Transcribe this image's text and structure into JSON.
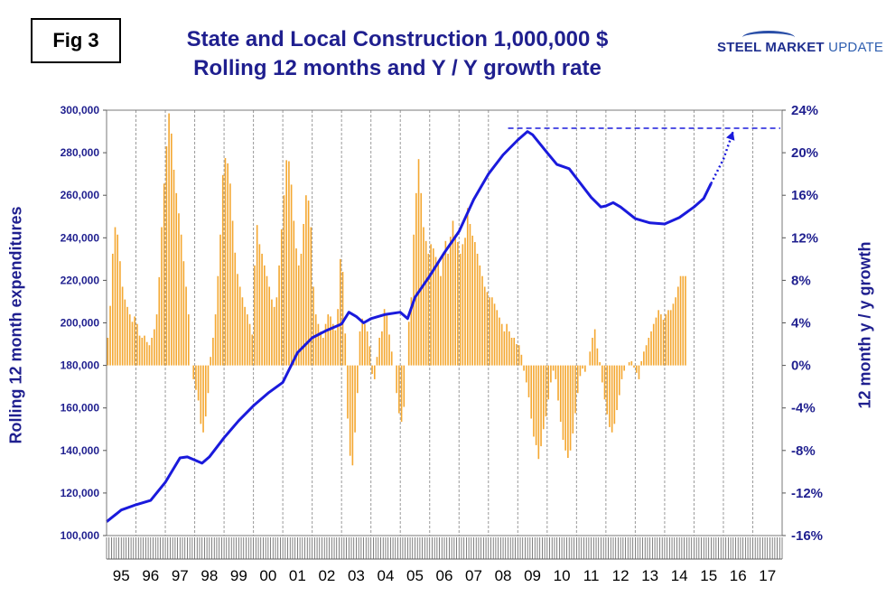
{
  "figure_label": "Fig 3",
  "title_line1": "State and Local Construction 1,000,000 $",
  "title_line2": "Rolling 12 months and Y / Y growth rate",
  "logo": {
    "bold": "STEEL MARKET",
    "light": "UPDATE"
  },
  "colors": {
    "line": "#1a1adc",
    "bars": "#f4a832",
    "text": "#1f1f8f",
    "grid": "#9a9a9a"
  },
  "chart_data": {
    "type": "bar+line",
    "left_axis": {
      "label": "Rolling 12 month expenditures",
      "min": 100000,
      "max": 300000,
      "ticks": [
        "100,000",
        "120,000",
        "140,000",
        "160,000",
        "180,000",
        "200,000",
        "220,000",
        "240,000",
        "260,000",
        "280,000",
        "300,000"
      ]
    },
    "right_axis": {
      "label": "12 month y / y growth",
      "min": -16,
      "max": 24,
      "ticks": [
        "-16%",
        "-12%",
        "-8%",
        "-4%",
        "0%",
        "4%",
        "8%",
        "12%",
        "16%",
        "20%",
        "24%"
      ]
    },
    "x_categories": [
      "95",
      "96",
      "97",
      "98",
      "99",
      "00",
      "01",
      "02",
      "03",
      "04",
      "05",
      "06",
      "07",
      "08",
      "09",
      "10",
      "11",
      "12",
      "13",
      "14",
      "15",
      "16",
      "17"
    ],
    "grid": "vertical dashed at year boundaries",
    "line_series": {
      "name": "Rolling 12 month expenditures",
      "axis": "left",
      "points": [
        [
          1995.0,
          106500
        ],
        [
          1995.5,
          112000
        ],
        [
          1996.0,
          114500
        ],
        [
          1996.5,
          116500
        ],
        [
          1997.0,
          125000
        ],
        [
          1997.5,
          136500
        ],
        [
          1997.75,
          137000
        ],
        [
          1998.0,
          135500
        ],
        [
          1998.25,
          134000
        ],
        [
          1998.5,
          137000
        ],
        [
          1999.0,
          146000
        ],
        [
          1999.5,
          154000
        ],
        [
          2000.0,
          161000
        ],
        [
          2000.5,
          167000
        ],
        [
          2001.0,
          172000
        ],
        [
          2001.5,
          186000
        ],
        [
          2002.0,
          193000
        ],
        [
          2002.5,
          196500
        ],
        [
          2003.0,
          199500
        ],
        [
          2003.25,
          205000
        ],
        [
          2003.5,
          203000
        ],
        [
          2003.75,
          200000
        ],
        [
          2004.0,
          202000
        ],
        [
          2004.5,
          204000
        ],
        [
          2005.0,
          205000
        ],
        [
          2005.25,
          202000
        ],
        [
          2005.5,
          212000
        ],
        [
          2006.0,
          222000
        ],
        [
          2006.5,
          233000
        ],
        [
          2007.0,
          243000
        ],
        [
          2007.5,
          258000
        ],
        [
          2008.0,
          270000
        ],
        [
          2008.5,
          279000
        ],
        [
          2009.0,
          286000
        ],
        [
          2009.33,
          290000
        ],
        [
          2009.5,
          288500
        ],
        [
          2010.0,
          280000
        ],
        [
          2010.33,
          274500
        ],
        [
          2010.75,
          272500
        ],
        [
          2011.0,
          268000
        ],
        [
          2011.5,
          259000
        ],
        [
          2011.83,
          254500
        ],
        [
          2012.0,
          255000
        ],
        [
          2012.25,
          256500
        ],
        [
          2012.5,
          254500
        ],
        [
          2013.0,
          249000
        ],
        [
          2013.5,
          247000
        ],
        [
          2014.0,
          246500
        ],
        [
          2014.5,
          249500
        ],
        [
          2015.0,
          254500
        ],
        [
          2015.33,
          258500
        ],
        [
          2015.58,
          265500
        ]
      ],
      "projection": [
        [
          2015.58,
          265500
        ],
        [
          2016.0,
          277000
        ],
        [
          2016.33,
          290000
        ]
      ],
      "reference_level": 291500,
      "reference_from_year": 2008.67
    },
    "bar_series": {
      "name": "12 month y / y growth",
      "axis": "right",
      "months_per_bar": 1,
      "start_year": 1995.0,
      "values": [
        2.6,
        5.6,
        10.5,
        13.0,
        12.3,
        9.8,
        7.4,
        6.2,
        5.5,
        4.8,
        4.1,
        4.6,
        3.9,
        2.8,
        2.6,
        2.8,
        2.2,
        1.9,
        2.6,
        3.4,
        4.8,
        8.3,
        13.0,
        17.1,
        20.6,
        23.7,
        21.8,
        18.4,
        16.2,
        14.3,
        12.3,
        9.8,
        7.4,
        4.8,
        0.0,
        -1.3,
        -2.3,
        -3.3,
        -5.5,
        -6.3,
        -4.8,
        -2.6,
        0.8,
        2.6,
        4.8,
        8.4,
        12.3,
        17.9,
        19.5,
        19.0,
        17.1,
        13.6,
        10.6,
        8.6,
        7.4,
        6.4,
        5.5,
        4.8,
        3.9,
        2.9,
        9.4,
        13.2,
        11.4,
        10.5,
        9.4,
        8.4,
        7.4,
        6.2,
        5.5,
        6.4,
        9.4,
        12.8,
        16.0,
        19.3,
        19.2,
        17.0,
        13.6,
        11.0,
        9.4,
        10.5,
        13.3,
        16.0,
        15.5,
        13.0,
        7.4,
        4.8,
        3.9,
        3.2,
        2.6,
        3.9,
        4.8,
        4.6,
        3.9,
        3.3,
        5.3,
        10.0,
        8.8,
        3.0,
        -5.0,
        -8.5,
        -9.4,
        -6.3,
        -2.6,
        3.2,
        4.4,
        3.9,
        3.2,
        1.8,
        -0.8,
        -1.3,
        0.8,
        2.6,
        3.2,
        5.3,
        4.8,
        2.9,
        1.3,
        0.0,
        -2.6,
        -4.5,
        -5.3,
        -3.9,
        0.0,
        4.1,
        6.4,
        12.3,
        16.2,
        19.4,
        16.2,
        13.0,
        11.7,
        10.5,
        11.4,
        11.0,
        10.2,
        9.8,
        8.4,
        10.5,
        11.7,
        10.5,
        12.1,
        13.6,
        12.3,
        11.6,
        10.5,
        11.4,
        12.0,
        14.8,
        13.3,
        12.2,
        11.6,
        10.5,
        9.4,
        8.4,
        7.4,
        6.9,
        6.4,
        6.4,
        5.8,
        5.2,
        4.5,
        3.9,
        3.2,
        3.9,
        3.2,
        2.6,
        2.6,
        2.0,
        1.9,
        1.0,
        -0.5,
        -1.6,
        -3.0,
        -5.0,
        -6.7,
        -7.5,
        -8.8,
        -7.6,
        -6.0,
        -4.8,
        -3.2,
        -1.6,
        -0.5,
        -1.3,
        -3.3,
        -5.3,
        -7.0,
        -8.0,
        -8.7,
        -8.0,
        -6.4,
        -4.5,
        -2.6,
        -1.0,
        -0.3,
        -0.6,
        0.0,
        1.3,
        2.6,
        3.4,
        1.6,
        0.3,
        -1.6,
        -3.2,
        -4.6,
        -5.8,
        -6.3,
        -5.5,
        -4.2,
        -2.8,
        -1.3,
        -0.5,
        0.0,
        0.3,
        0.4,
        -0.2,
        -0.7,
        -1.3,
        0.4,
        1.3,
        1.9,
        2.6,
        3.2,
        3.9,
        4.5,
        5.2,
        4.8,
        4.3,
        4.8,
        5.2,
        5.2,
        5.8,
        6.4,
        7.4,
        8.4,
        8.4,
        8.4
      ]
    }
  }
}
